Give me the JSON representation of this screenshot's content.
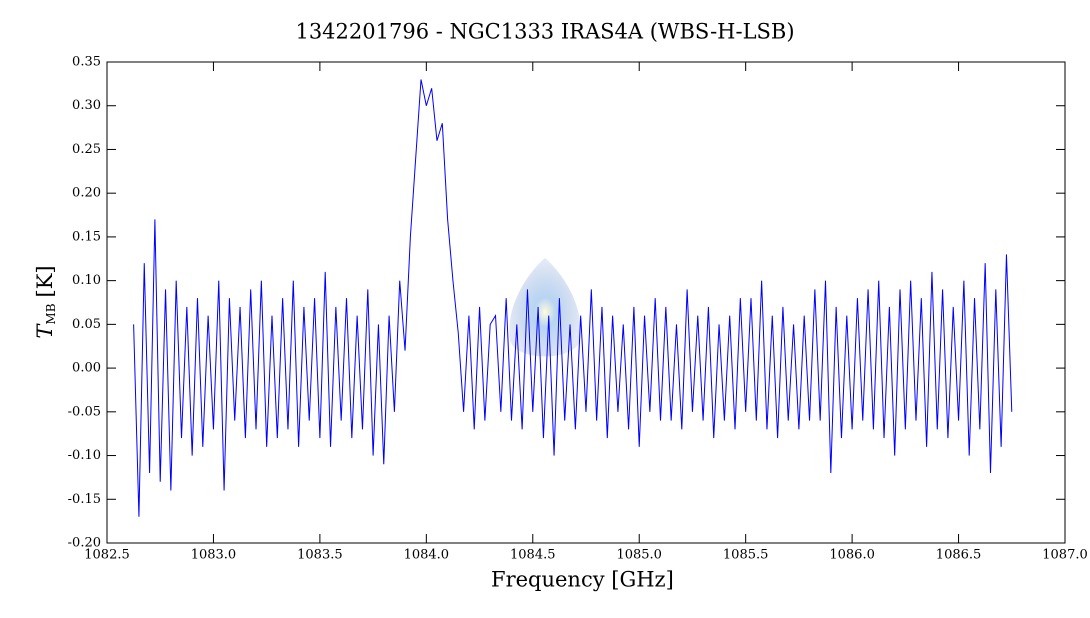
{
  "chart_data": {
    "type": "line",
    "title": "1342201796 - NGC1333 IRAS4A (WBS-H-LSB)",
    "xlabel": "Frequency [GHz]",
    "ylabel": {
      "symbol": "T",
      "subscript": "MB",
      "unit": "[K]"
    },
    "xlim": [
      1082.5,
      1087.0
    ],
    "ylim": [
      -0.2,
      0.35
    ],
    "xticks": [
      {
        "value": 1082.5,
        "label": "1082.5"
      },
      {
        "value": 1083,
        "label": "1083.0"
      },
      {
        "value": 1083.5,
        "label": "1083.5"
      },
      {
        "value": 1084,
        "label": "1084.0"
      },
      {
        "value": 1084.5,
        "label": "1084.5"
      },
      {
        "value": 1085,
        "label": "1085.0"
      },
      {
        "value": 1085.5,
        "label": "1085.5"
      },
      {
        "value": 1086,
        "label": "1086.0"
      },
      {
        "value": 1086.5,
        "label": "1086.5"
      },
      {
        "value": 1087,
        "label": "1087.0"
      }
    ],
    "yticks": [
      {
        "value": -0.2,
        "label": "-0.20"
      },
      {
        "value": -0.15,
        "label": "-0.15"
      },
      {
        "value": -0.1,
        "label": "-0.10"
      },
      {
        "value": -0.05,
        "label": "-0.05"
      },
      {
        "value": 0,
        "label": "0.00"
      },
      {
        "value": 0.05,
        "label": "0.05"
      },
      {
        "value": 0.1,
        "label": "0.10"
      },
      {
        "value": 0.15,
        "label": "0.15"
      },
      {
        "value": 0.2,
        "label": "0.20"
      },
      {
        "value": 0.25,
        "label": "0.25"
      },
      {
        "value": 0.3,
        "label": "0.30"
      },
      {
        "value": 0.35,
        "label": "0.35"
      }
    ],
    "series": [
      {
        "color": "#0000ff",
        "x": [
          1082.625,
          1082.65,
          1082.675,
          1082.7,
          1082.725,
          1082.75,
          1082.775,
          1082.8,
          1082.825,
          1082.85,
          1082.875,
          1082.9,
          1082.925,
          1082.95,
          1082.975,
          1083.0,
          1083.025,
          1083.05,
          1083.075,
          1083.1,
          1083.125,
          1083.15,
          1083.175,
          1083.2,
          1083.225,
          1083.25,
          1083.275,
          1083.3,
          1083.325,
          1083.35,
          1083.375,
          1083.4,
          1083.425,
          1083.45,
          1083.475,
          1083.5,
          1083.525,
          1083.55,
          1083.575,
          1083.6,
          1083.625,
          1083.65,
          1083.675,
          1083.7,
          1083.725,
          1083.75,
          1083.775,
          1083.8,
          1083.825,
          1083.85,
          1083.875,
          1083.9,
          1083.925,
          1083.95,
          1083.975,
          1084.0,
          1084.025,
          1084.05,
          1084.075,
          1084.1,
          1084.125,
          1084.15,
          1084.175,
          1084.2,
          1084.225,
          1084.25,
          1084.275,
          1084.3,
          1084.325,
          1084.35,
          1084.375,
          1084.4,
          1084.425,
          1084.45,
          1084.475,
          1084.5,
          1084.525,
          1084.55,
          1084.575,
          1084.6,
          1084.625,
          1084.65,
          1084.675,
          1084.7,
          1084.725,
          1084.75,
          1084.775,
          1084.8,
          1084.825,
          1084.85,
          1084.875,
          1084.9,
          1084.925,
          1084.95,
          1084.975,
          1085.0,
          1085.025,
          1085.05,
          1085.075,
          1085.1,
          1085.125,
          1085.15,
          1085.175,
          1085.2,
          1085.225,
          1085.25,
          1085.275,
          1085.3,
          1085.325,
          1085.35,
          1085.375,
          1085.4,
          1085.425,
          1085.45,
          1085.475,
          1085.5,
          1085.525,
          1085.55,
          1085.575,
          1085.6,
          1085.625,
          1085.65,
          1085.675,
          1085.7,
          1085.725,
          1085.75,
          1085.775,
          1085.8,
          1085.825,
          1085.85,
          1085.875,
          1085.9,
          1085.925,
          1085.95,
          1085.975,
          1086.0,
          1086.025,
          1086.05,
          1086.075,
          1086.1,
          1086.125,
          1086.15,
          1086.175,
          1086.2,
          1086.225,
          1086.25,
          1086.275,
          1086.3,
          1086.325,
          1086.35,
          1086.375,
          1086.4,
          1086.425,
          1086.45,
          1086.475,
          1086.5,
          1086.525,
          1086.55,
          1086.575,
          1086.6,
          1086.625,
          1086.65,
          1086.675,
          1086.7,
          1086.725,
          1086.75
        ],
        "values": [
          0.05,
          -0.17,
          0.12,
          -0.12,
          0.17,
          -0.13,
          0.09,
          -0.14,
          0.1,
          -0.08,
          0.07,
          -0.1,
          0.08,
          -0.09,
          0.06,
          -0.07,
          0.1,
          -0.14,
          0.08,
          -0.06,
          0.07,
          -0.08,
          0.09,
          -0.07,
          0.1,
          -0.09,
          0.06,
          -0.08,
          0.08,
          -0.07,
          0.1,
          -0.09,
          0.07,
          -0.06,
          0.08,
          -0.08,
          0.11,
          -0.09,
          0.07,
          -0.06,
          0.08,
          -0.08,
          0.06,
          -0.07,
          0.09,
          -0.1,
          0.05,
          -0.11,
          0.06,
          -0.05,
          0.1,
          0.02,
          0.15,
          0.24,
          0.33,
          0.3,
          0.32,
          0.26,
          0.28,
          0.17,
          0.1,
          0.04,
          -0.05,
          0.06,
          -0.07,
          0.07,
          -0.06,
          0.05,
          0.06,
          -0.05,
          0.08,
          -0.06,
          0.05,
          -0.07,
          0.09,
          -0.05,
          0.07,
          -0.08,
          0.06,
          -0.1,
          0.08,
          -0.06,
          0.05,
          -0.07,
          0.06,
          -0.05,
          0.09,
          -0.06,
          0.07,
          -0.08,
          0.06,
          -0.05,
          0.05,
          -0.07,
          0.07,
          -0.09,
          0.06,
          -0.05,
          0.08,
          -0.06,
          0.07,
          -0.06,
          0.05,
          -0.07,
          0.09,
          -0.05,
          0.06,
          -0.06,
          0.07,
          -0.08,
          0.05,
          -0.06,
          0.06,
          -0.07,
          0.08,
          -0.05,
          0.08,
          -0.06,
          0.1,
          -0.07,
          0.06,
          -0.08,
          0.07,
          -0.06,
          0.05,
          -0.07,
          0.06,
          -0.06,
          0.09,
          -0.06,
          0.1,
          -0.12,
          0.07,
          -0.08,
          0.06,
          -0.07,
          0.08,
          -0.06,
          0.09,
          -0.07,
          0.1,
          -0.08,
          0.07,
          -0.1,
          0.09,
          -0.07,
          0.1,
          -0.06,
          0.08,
          -0.09,
          0.11,
          -0.07,
          0.09,
          -0.08,
          0.07,
          -0.06,
          0.1,
          -0.1,
          0.08,
          -0.07,
          0.12,
          -0.12,
          0.09,
          -0.09,
          0.13,
          -0.05
        ]
      }
    ]
  }
}
